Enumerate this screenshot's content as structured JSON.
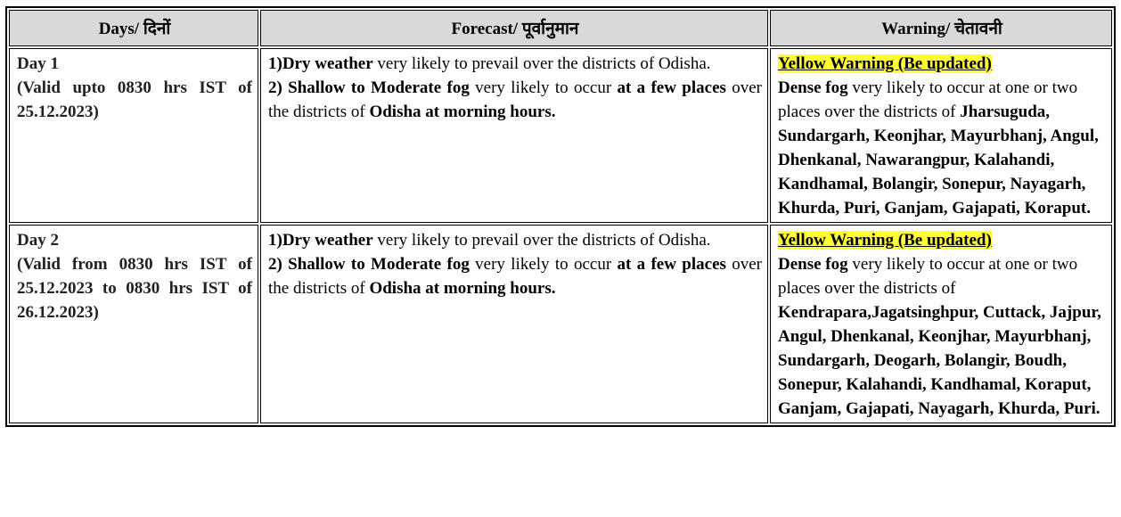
{
  "table": {
    "header": [
      "Days/  दिनों",
      "Forecast/ पूर्वानुमान",
      "Warning/ चेतावनी"
    ],
    "rows": [
      {
        "day": "Day 1",
        "validity": "(Valid  upto 0830 hrs IST of 25.12.2023)",
        "forecast": [
          [
            {
              "text": "1)Dry weather",
              "bold": true
            },
            {
              "text": " very likely to prevail over the districts of Odisha."
            }
          ],
          [
            {
              "text": "2) Shallow to Moderate fog",
              "bold": true
            },
            {
              "text": "  very likely to occur "
            },
            {
              "text": "at a few places",
              "bold": true
            },
            {
              "text": " over the districts of "
            },
            {
              "text": "Odisha at morning hours.",
              "bold": true
            }
          ]
        ],
        "warning": {
          "level": "Yellow Warning (Be updated)",
          "text": [
            {
              "text": "Dense fog",
              "bold": true
            },
            {
              "text": " very likely to occur at one or two places over the districts of "
            },
            {
              "text": "Jharsuguda, Sundargarh, Keonjhar, Mayurbhanj, Angul, Dhenkanal, Nawarangpur, Kalahandi, Kandhamal, Bolangir, Sonepur, Nayagarh, Khurda, Puri, Ganjam, Gajapati, Koraput.",
              "bold": true
            }
          ]
        }
      },
      {
        "day": "Day 2",
        "validity": "(Valid from 0830 hrs IST of 25.12.2023 to 0830 hrs IST of 26.12.2023)",
        "forecast": [
          [
            {
              "text": "1)Dry weather",
              "bold": true
            },
            {
              "text": " very likely to prevail over the districts of Odisha."
            }
          ],
          [
            {
              "text": "2) Shallow to Moderate fog",
              "bold": true
            },
            {
              "text": "  very likely to occur "
            },
            {
              "text": "at a few places",
              "bold": true
            },
            {
              "text": " over the districts of "
            },
            {
              "text": "Odisha at morning hours.",
              "bold": true
            }
          ]
        ],
        "warning": {
          "level": "Yellow Warning (Be updated)",
          "text": [
            {
              "text": "Dense fog",
              "bold": true
            },
            {
              "text": " very likely to occur at one or two places over the districts of "
            },
            {
              "text": "Kendrapara,Jagatsinghpur, Cuttack, Jajpur, Angul, Dhenkanal, Keonjhar, Mayurbhanj, Sundargarh, Deogarh, Bolangir, Boudh, Sonepur, Kalahandi, Kandhamal, Koraput, Ganjam, Gajapati, Nayagarh, Khurda, Puri.",
              "bold": true
            }
          ]
        }
      }
    ]
  }
}
